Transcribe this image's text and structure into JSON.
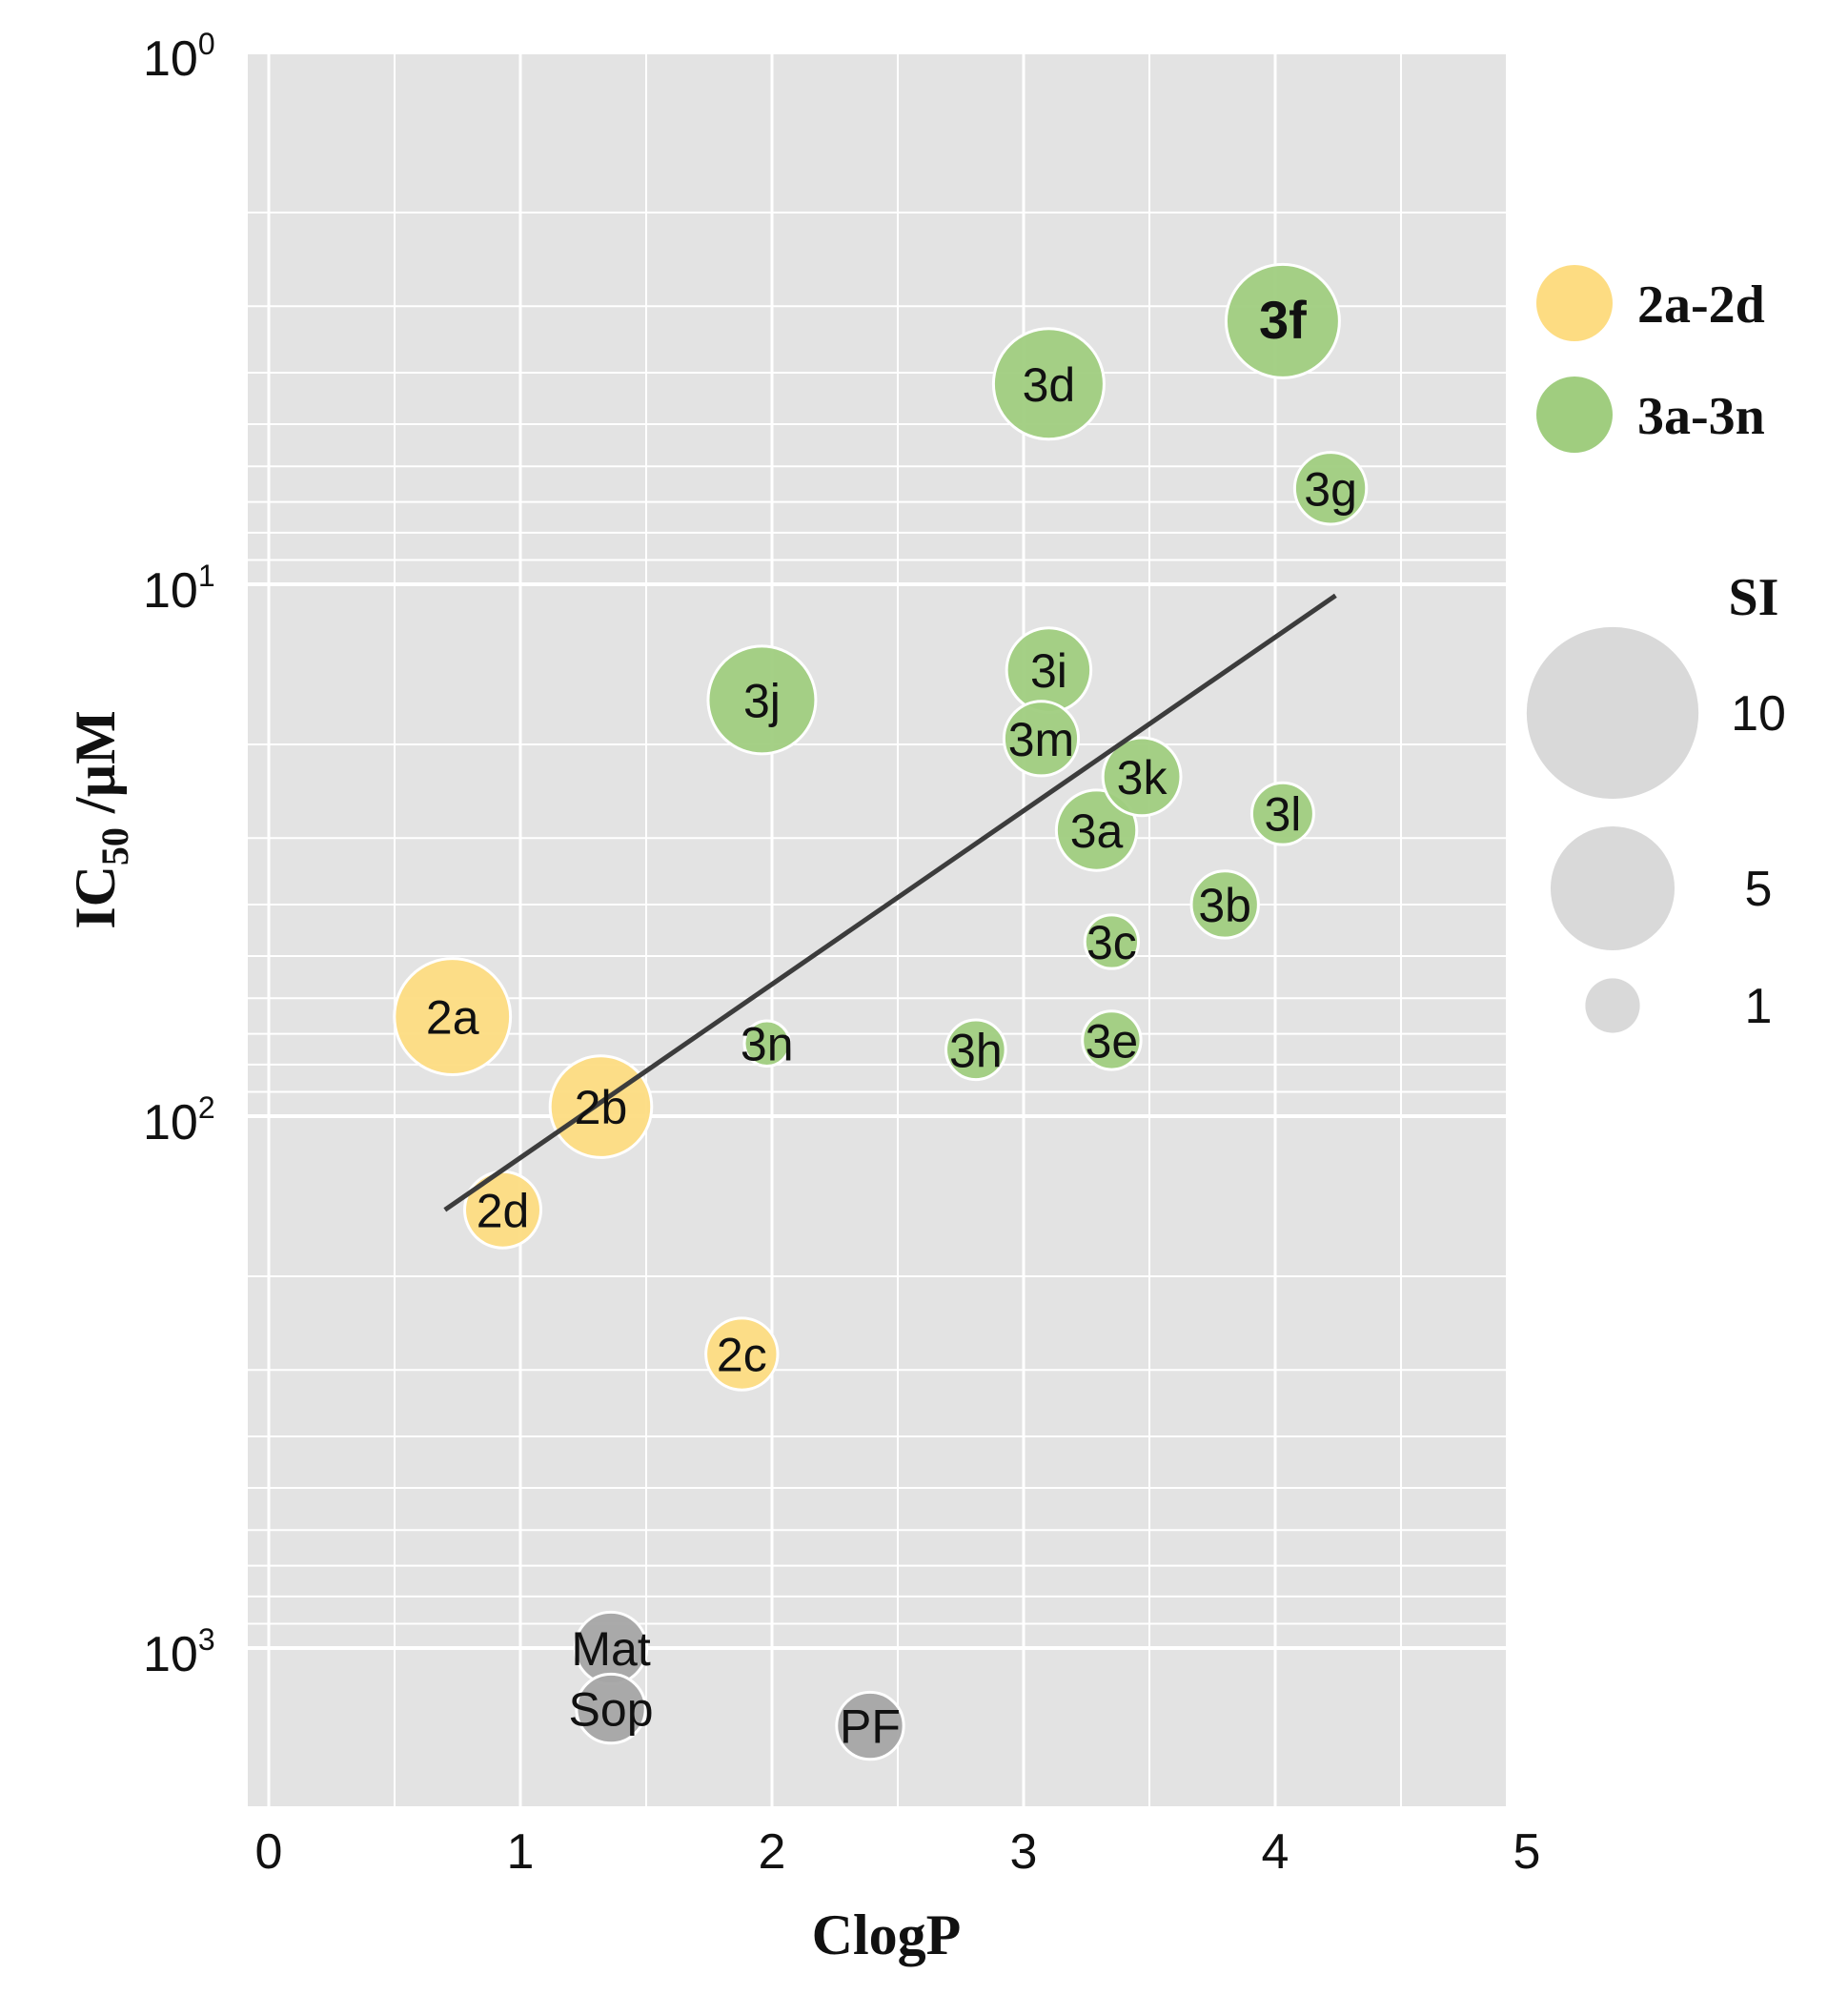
{
  "chart_data": {
    "type": "scatter",
    "xlabel": "ClogP",
    "ylabel_main": "IC",
    "ylabel_sub": "50",
    "ylabel_rest": " /µM",
    "xlim": [
      0,
      5
    ],
    "ylim": [
      2000,
      1
    ],
    "yscale": "log",
    "y_reversed": true,
    "grid": true,
    "x_ticks": [
      "0",
      "1",
      "2",
      "3",
      "4",
      "5"
    ],
    "y_ticks": [
      {
        "base": "10",
        "exp": "0",
        "value": 1
      },
      {
        "base": "10",
        "exp": "1",
        "value": 10
      },
      {
        "base": "10",
        "exp": "2",
        "value": 100
      },
      {
        "base": "10",
        "exp": "3",
        "value": 1000
      }
    ],
    "colors": {
      "group2": "#fddc82",
      "group3": "#a0cd7f",
      "reference": "#a5a5a5",
      "size_legend": "#d9d9d9",
      "trendline": "#3c3c3c",
      "plot_bg": "#e3e3e3",
      "grid": "#ffffff"
    },
    "series": [
      {
        "name": "2a-2d",
        "color": "#fddc82",
        "points": [
          {
            "label": "2a",
            "x": 0.73,
            "y": 65,
            "si": 10
          },
          {
            "label": "2b",
            "x": 1.32,
            "y": 96,
            "si": 7.5
          },
          {
            "label": "2c",
            "x": 1.88,
            "y": 280,
            "si": 3.5
          },
          {
            "label": "2d",
            "x": 0.93,
            "y": 150,
            "si": 4
          }
        ]
      },
      {
        "name": "3a-3n",
        "color": "#a0cd7f",
        "points": [
          {
            "label": "3a",
            "x": 3.29,
            "y": 29,
            "si": 4.5
          },
          {
            "label": "3b",
            "x": 3.8,
            "y": 40,
            "si": 3
          },
          {
            "label": "3c",
            "x": 3.35,
            "y": 47,
            "si": 1.8
          },
          {
            "label": "3d",
            "x": 3.1,
            "y": 4.2,
            "si": 9
          },
          {
            "label": "3e",
            "x": 3.35,
            "y": 72,
            "si": 2.2
          },
          {
            "label": "3f",
            "x": 4.03,
            "y": 3.2,
            "si": 9.5
          },
          {
            "label": "3g",
            "x": 4.22,
            "y": 6.6,
            "si": 3.5
          },
          {
            "label": "3h",
            "x": 2.81,
            "y": 75,
            "si": 2.3
          },
          {
            "label": "3i",
            "x": 3.1,
            "y": 14.5,
            "si": 5
          },
          {
            "label": "3j",
            "x": 1.96,
            "y": 16.5,
            "si": 8.5
          },
          {
            "label": "3k",
            "x": 3.47,
            "y": 23,
            "si": 4.2
          },
          {
            "label": "3l",
            "x": 4.03,
            "y": 27,
            "si": 2.5
          },
          {
            "label": "3m",
            "x": 3.07,
            "y": 19.5,
            "si": 3.8
          },
          {
            "label": "3n",
            "x": 1.98,
            "y": 73,
            "si": 1.2
          }
        ]
      },
      {
        "color": "#a5a5a5",
        "points": [
          {
            "label": "Mat",
            "x": 1.36,
            "y": 1000,
            "si": 3.5
          },
          {
            "label": "Sop",
            "x": 1.36,
            "y": 1300,
            "si": 3.2
          },
          {
            "label": "PF",
            "x": 2.39,
            "y": 1400,
            "si": 3
          }
        ]
      }
    ],
    "trendline": {
      "x1": 0.7,
      "y1": 150,
      "x2": 4.24,
      "y2": 10.5
    },
    "legend": {
      "groups": [
        {
          "label": "2a-2d",
          "color": "#fddc82"
        },
        {
          "label": "3a-3n",
          "color": "#a0cd7f"
        }
      ],
      "size_title": "SI",
      "sizes": [
        {
          "label": "10",
          "si": 10
        },
        {
          "label": "5",
          "si": 5
        },
        {
          "label": "1",
          "si": 1
        }
      ]
    }
  }
}
